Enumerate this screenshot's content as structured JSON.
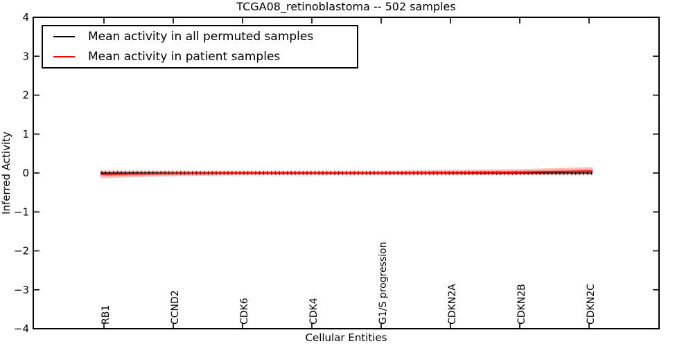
{
  "chart_data": {
    "type": "line",
    "title": "TCGA08_retinoblastoma -- 502 samples",
    "xlabel": "Cellular Entities",
    "ylabel": "Inferred Activity",
    "ylim": [
      -4,
      4
    ],
    "yticks": [
      -4,
      -3,
      -2,
      -1,
      0,
      1,
      2,
      3,
      4
    ],
    "categories": [
      "RB1",
      "CCND2",
      "CDK6",
      "CDK4",
      "G1/S progression",
      "CDKN2A",
      "CDKN2B",
      "CDKN2C"
    ],
    "series": [
      {
        "name": "Mean activity in all permuted samples",
        "color": "#000000",
        "values": [
          0,
          0,
          0,
          0,
          0,
          0,
          0,
          0
        ]
      },
      {
        "name": "Mean activity in patient samples",
        "color": "#ff0000",
        "values": [
          -0.03,
          -0.01,
          0,
          0,
          0,
          0.01,
          0.02,
          0.05
        ]
      }
    ],
    "band": {
      "series": "Mean activity in patient samples",
      "color": "#ff0000",
      "alpha": 0.25,
      "half_widths": [
        0.1,
        0.07,
        0.06,
        0.06,
        0.06,
        0.07,
        0.08,
        0.1
      ]
    },
    "marker": "vertical-tick",
    "legend_position": "upper left",
    "grid": false,
    "axis_color": "#000000",
    "background": "#ffffff"
  }
}
